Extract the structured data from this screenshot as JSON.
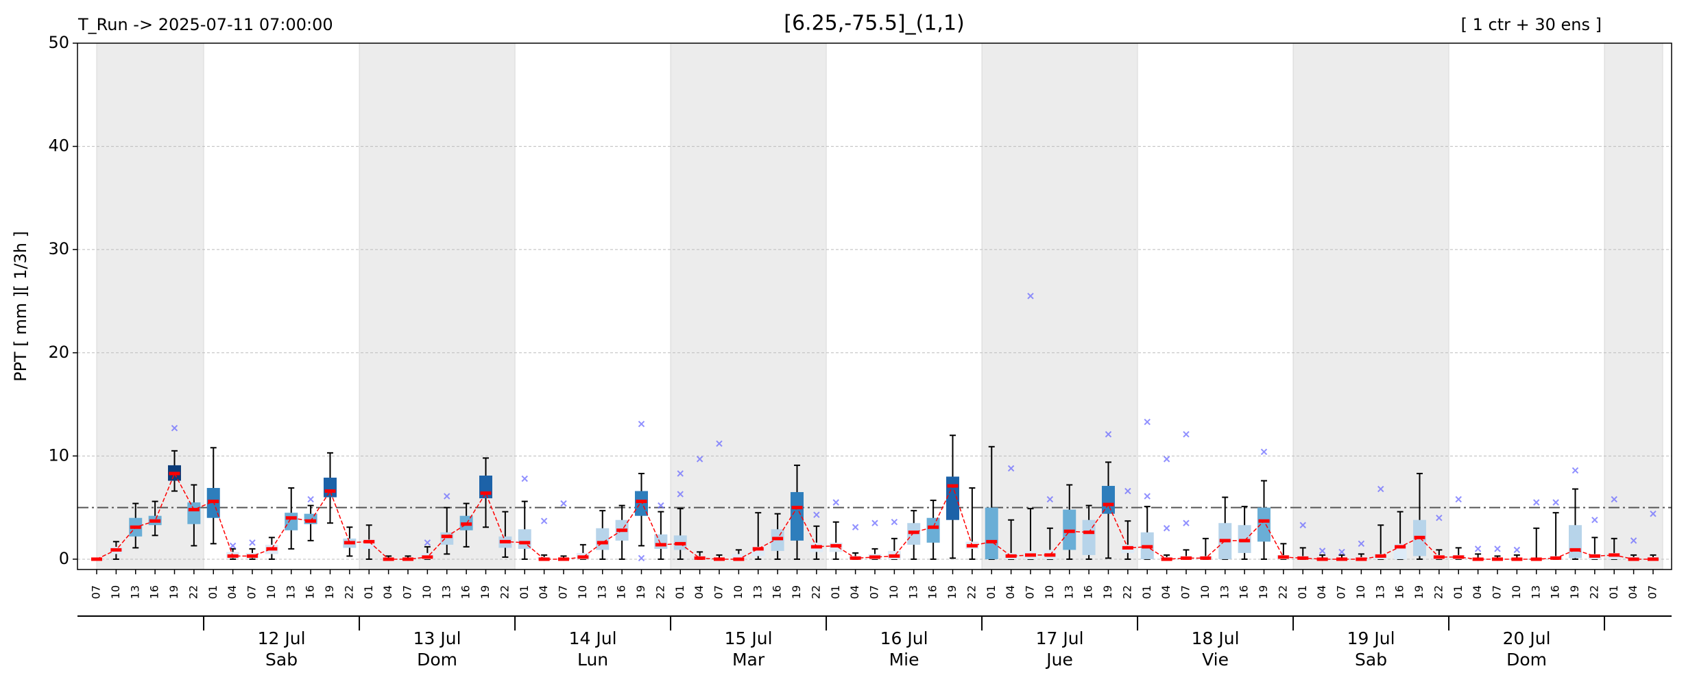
{
  "chart_data": {
    "type": "box",
    "title": "[6.25,-75.5]_(1,1)",
    "run_label": "T_Run -> 2025-07-11  07:00:00",
    "members_label": "[ 1 ctr + 30 ens ]",
    "ylabel": "PPT  [ mm ][ 1/3h ]",
    "categories": [
      "07",
      "10",
      "13",
      "16",
      "19",
      "22",
      "01",
      "04",
      "07",
      "10",
      "13",
      "16",
      "19",
      "22",
      "01",
      "04",
      "07",
      "10",
      "13",
      "16",
      "19",
      "22",
      "01",
      "04",
      "07",
      "10",
      "13",
      "16",
      "19",
      "22",
      "01",
      "04",
      "07",
      "10",
      "13",
      "16",
      "19",
      "22",
      "01",
      "04",
      "07",
      "10",
      "13",
      "16",
      "19",
      "22",
      "01",
      "04",
      "07",
      "10",
      "13",
      "16",
      "19",
      "22",
      "01",
      "04",
      "07",
      "10",
      "13",
      "16",
      "19",
      "22",
      "01",
      "04",
      "07",
      "10",
      "13",
      "16",
      "19",
      "22",
      "01",
      "04",
      "07",
      "10",
      "13",
      "16",
      "19",
      "22",
      "01",
      "04",
      "07"
    ],
    "days": [
      {
        "date": "12 Jul",
        "weekday": "Sab"
      },
      {
        "date": "13 Jul",
        "weekday": "Dom"
      },
      {
        "date": "14 Jul",
        "weekday": "Lun"
      },
      {
        "date": "15 Jul",
        "weekday": "Mar"
      },
      {
        "date": "16 Jul",
        "weekday": "Mie"
      },
      {
        "date": "17 Jul",
        "weekday": "Jue"
      },
      {
        "date": "18 Jul",
        "weekday": "Vie"
      },
      {
        "date": "19 Jul",
        "weekday": "Sab"
      },
      {
        "date": "20 Jul",
        "weekday": "Dom"
      }
    ],
    "ctr": [
      0,
      0.9,
      3.1,
      3.7,
      8.3,
      4.8,
      5.6,
      0.3,
      0.3,
      1.0,
      4.0,
      3.7,
      6.6,
      1.6,
      1.7,
      0,
      0,
      0.2,
      2.2,
      3.4,
      6.4,
      1.7,
      1.6,
      0,
      0,
      0.2,
      1.6,
      2.8,
      5.6,
      1.4,
      1.5,
      0.1,
      0,
      0,
      1.0,
      2.0,
      5.0,
      1.2,
      1.3,
      0.1,
      0.2,
      0.3,
      2.6,
      3.1,
      7.1,
      1.3,
      1.7,
      0.3,
      0.4,
      0.4,
      2.7,
      2.6,
      5.3,
      1.1,
      1.2,
      0,
      0.1,
      0.1,
      1.8,
      1.8,
      3.7,
      0.2,
      0.1,
      0,
      0,
      0,
      0.3,
      1.2,
      2.1,
      0.2,
      0.2,
      0,
      0,
      0,
      0,
      0.1,
      0.9,
      0.3,
      0.4,
      0,
      0
    ],
    "q1": [
      0,
      0.5,
      2.2,
      3.3,
      7.6,
      3.4,
      4.0,
      0.1,
      0.1,
      0.5,
      2.8,
      3.4,
      6.0,
      1.1,
      1.0,
      0,
      0,
      0,
      1.4,
      2.8,
      5.9,
      1.1,
      1.0,
      0,
      0,
      0,
      0.9,
      1.8,
      4.2,
      1.0,
      0.9,
      0,
      0,
      0,
      0.3,
      0.8,
      1.8,
      0.7,
      0.7,
      0,
      0,
      0,
      1.4,
      1.6,
      3.8,
      1.0,
      0,
      0,
      0,
      0,
      0.9,
      0.4,
      4.4,
      0.6,
      0,
      0,
      0,
      0,
      0,
      0.6,
      1.7,
      0,
      0,
      0,
      0,
      0,
      0,
      0,
      0.3,
      0,
      0,
      0,
      0,
      0,
      0,
      0,
      0.1,
      0,
      0,
      0,
      0
    ],
    "q3": [
      0,
      1.2,
      4.0,
      4.2,
      9.1,
      5.5,
      6.9,
      0.7,
      0.6,
      1.4,
      4.5,
      4.4,
      7.9,
      2.0,
      1.9,
      0.1,
      0.1,
      0.6,
      2.6,
      4.2,
      8.1,
      2.2,
      2.9,
      0.2,
      0.1,
      0.6,
      3.0,
      3.8,
      6.6,
      2.4,
      2.3,
      0.3,
      0.1,
      0.5,
      1.2,
      2.9,
      6.5,
      1.6,
      1.6,
      0.3,
      0.5,
      0.8,
      3.5,
      4.0,
      8.0,
      1.7,
      5.0,
      0.6,
      0.8,
      0.9,
      4.8,
      3.8,
      7.1,
      1.4,
      2.6,
      0.2,
      0.3,
      0.3,
      3.5,
      3.3,
      5.0,
      0.4,
      0.3,
      0.1,
      0.1,
      0.2,
      0.5,
      1.5,
      3.8,
      0.4,
      0.4,
      0.1,
      0.1,
      0.1,
      0.1,
      0.3,
      3.3,
      0.5,
      0.6,
      0.2,
      0.2
    ],
    "min": [
      0,
      0,
      1.1,
      2.3,
      6.6,
      1.3,
      1.5,
      0,
      0,
      0,
      1.0,
      1.8,
      3.5,
      0.3,
      0,
      0,
      0,
      0,
      0.5,
      1.2,
      3.1,
      0.2,
      0,
      0,
      0,
      0,
      0,
      0,
      1.3,
      0,
      0,
      0,
      0,
      0,
      0,
      0,
      0,
      0,
      0,
      0,
      0,
      0,
      0,
      0,
      0.1,
      0,
      0,
      0,
      0,
      0,
      0,
      0,
      0.1,
      0,
      0,
      0,
      0,
      0,
      0,
      0,
      0,
      0,
      0,
      0,
      0,
      0,
      0,
      0,
      0,
      0,
      0,
      0,
      0,
      0,
      0,
      0,
      0,
      0,
      0,
      0,
      0
    ],
    "max": [
      0,
      1.7,
      5.4,
      5.6,
      10.5,
      7.2,
      10.8,
      1.0,
      1.0,
      2.1,
      6.9,
      5.2,
      10.3,
      3.1,
      3.3,
      0.3,
      0.3,
      1.2,
      5.0,
      5.4,
      9.8,
      4.6,
      5.6,
      0.4,
      0.3,
      1.4,
      4.7,
      5.2,
      8.3,
      4.6,
      4.9,
      0.7,
      0.4,
      0.9,
      4.5,
      4.4,
      9.1,
      3.2,
      3.6,
      0.6,
      1.0,
      2.0,
      4.7,
      5.7,
      12.0,
      6.9,
      10.9,
      3.8,
      4.9,
      3.0,
      7.2,
      5.2,
      9.4,
      3.7,
      5.1,
      0.4,
      0.9,
      2.0,
      6.0,
      5.1,
      7.6,
      1.5,
      1.1,
      0.4,
      0.4,
      0.5,
      3.3,
      4.6,
      8.3,
      0.9,
      1.1,
      0.5,
      0.3,
      0.4,
      3.0,
      4.5,
      6.8,
      2.1,
      2.0,
      0.4,
      0.4
    ],
    "outliers": [
      [],
      [],
      [],
      [],
      [
        12.7
      ],
      [],
      [],
      [
        1.3
      ],
      [
        1.6
      ],
      [],
      [],
      [
        5.8
      ],
      [],
      [],
      [],
      [],
      [],
      [
        1.6
      ],
      [
        6.1
      ],
      [],
      [],
      [],
      [
        7.8
      ],
      [
        3.7
      ],
      [
        5.4
      ],
      [],
      [],
      [],
      [
        13.1,
        0.1
      ],
      [
        5.2
      ],
      [
        6.3,
        8.3
      ],
      [
        9.7
      ],
      [
        11.2
      ],
      [],
      [],
      [],
      [],
      [
        4.3
      ],
      [
        5.5
      ],
      [
        3.1
      ],
      [
        3.5
      ],
      [
        3.6
      ],
      [],
      [],
      [],
      [],
      [],
      [
        8.8
      ],
      [
        25.5
      ],
      [
        5.8
      ],
      [],
      [],
      [
        12.1
      ],
      [
        6.6
      ],
      [
        13.3,
        6.1
      ],
      [
        9.7,
        3.0
      ],
      [
        12.1,
        3.5
      ],
      [],
      [],
      [],
      [
        10.4
      ],
      [],
      [
        3.3
      ],
      [
        0.8
      ],
      [
        0.7
      ],
      [
        1.5
      ],
      [
        6.8
      ],
      [],
      [],
      [
        4.0
      ],
      [
        5.8
      ],
      [
        1.0
      ],
      [
        1.0
      ],
      [
        0.9
      ],
      [
        5.5
      ],
      [
        5.5
      ],
      [
        8.6
      ],
      [
        3.8
      ],
      [
        5.8
      ],
      [
        1.8
      ],
      [
        4.4
      ]
    ],
    "threshold": 5,
    "ylim": [
      -1,
      50
    ],
    "yticks": [
      0,
      10,
      20,
      30,
      40,
      50
    ],
    "grid": true,
    "box_palette": [
      "#deebf7",
      "#b7d4ea",
      "#6aaed6",
      "#2e7ebc",
      "#1c62a8",
      "#0b3c7a"
    ],
    "colors": {
      "control": "#ff0000",
      "whisker": "#000000",
      "outlier": "#6b6bff",
      "threshold": "#555555",
      "shade": "#ececec",
      "title_note": "#ff0000"
    }
  }
}
